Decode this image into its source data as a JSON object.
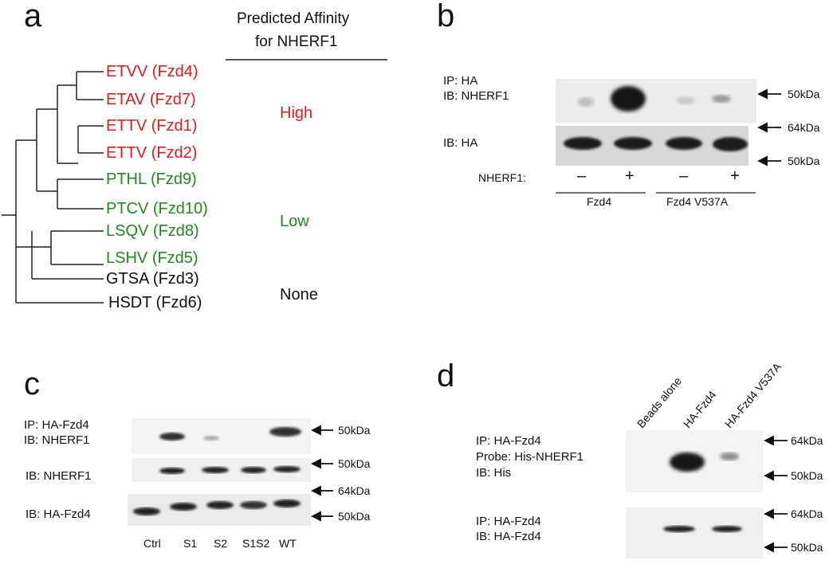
{
  "panels": {
    "a": {
      "label": "a",
      "header_line1": "Predicted Affinity",
      "header_line2": "for NHERF1",
      "colors": {
        "high": "#e31b1b",
        "low": "#1f8a1f",
        "none": "#111111"
      },
      "tips": [
        {
          "text": "ETVV (Fzd4)",
          "group": "high"
        },
        {
          "text": "ETAV (Fzd7)",
          "group": "high"
        },
        {
          "text": "ETTV (Fzd1)",
          "group": "high"
        },
        {
          "text": "ETTV (Fzd2)",
          "group": "high"
        },
        {
          "text": "PTHL (Fzd9)",
          "group": "low"
        },
        {
          "text": "PTCV (Fzd10)",
          "group": "low"
        },
        {
          "text": "LSQV (Fzd8)",
          "group": "low"
        },
        {
          "text": "LSHV (Fzd5)",
          "group": "low"
        },
        {
          "text": "GTSA (Fzd3)",
          "group": "none"
        },
        {
          "text": "HSDT (Fzd6)",
          "group": "none"
        }
      ],
      "affinity": {
        "high": "High",
        "low": "Low",
        "none": "None"
      }
    },
    "b": {
      "label": "b",
      "ip1": "IP: HA",
      "ib1": "IB: NHERF1",
      "ib2": "IB: HA",
      "markers": [
        "50kDa",
        "64kDa",
        "50kDa"
      ],
      "nherf_row_label": "NHERF1:",
      "signs": [
        "–",
        "+",
        "–",
        "+"
      ],
      "groups": [
        "Fzd4",
        "Fzd4 V537A"
      ]
    },
    "c": {
      "label": "c",
      "ip1": "IP: HA-Fzd4",
      "ib1": "IB: NHERF1",
      "ib2": "IB: NHERF1",
      "ib3": "IB: HA-Fzd4",
      "markers": [
        "50kDa",
        "50kDa",
        "64kDa",
        "50kDa"
      ],
      "lanes": [
        "Ctrl",
        "S1",
        "S2",
        "S1S2",
        "WT"
      ]
    },
    "d": {
      "label": "d",
      "lanes": [
        "Beads alone",
        "HA-Fzd4",
        "HA-Fzd4 V537A"
      ],
      "row1": [
        "IP: HA-Fzd4",
        "Probe: His-NHERF1",
        "IB: His"
      ],
      "row2": [
        "IP: HA-Fzd4",
        "IB: HA-Fzd4"
      ],
      "markers": [
        "64kDa",
        "50kDa",
        "64kDa",
        "50kDa"
      ]
    }
  }
}
